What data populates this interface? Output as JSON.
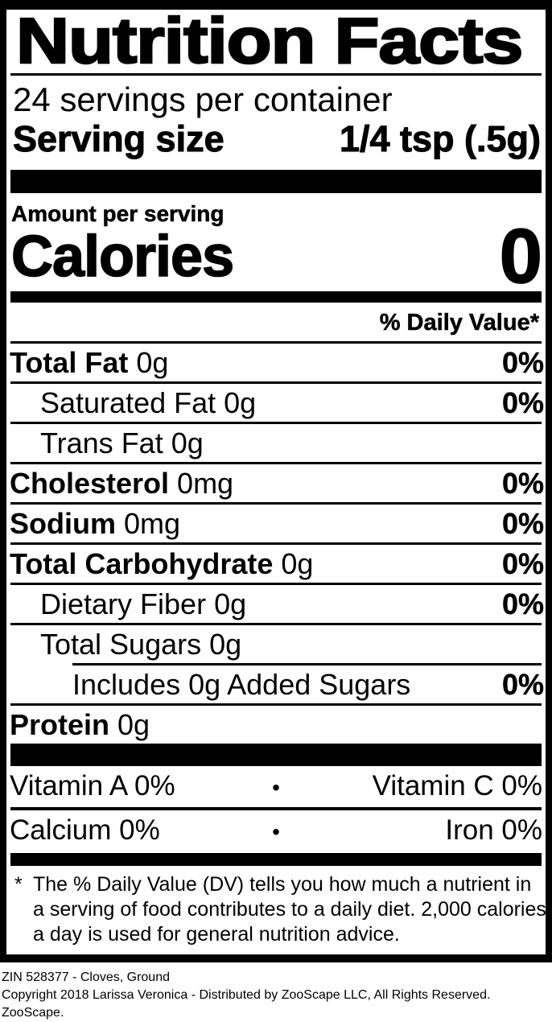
{
  "label": {
    "title": "Nutrition Facts",
    "servings_per_container": "24 servings per container",
    "serving_size_label": "Serving size",
    "serving_size_value": "1/4 tsp (.5g)",
    "amount_per_serving": "Amount per serving",
    "calories_label": "Calories",
    "calories_value": "0",
    "daily_value_header": "% Daily Value*",
    "rows": [
      {
        "name": "Total Fat",
        "amount": "0g",
        "dv": "0%",
        "bold": true,
        "indent": 0,
        "rule": "full"
      },
      {
        "name": "Saturated Fat",
        "amount": "0g",
        "dv": "0%",
        "bold": false,
        "indent": 1,
        "rule": "full"
      },
      {
        "name": "Trans Fat",
        "amount": "0g",
        "dv": "",
        "bold": false,
        "indent": 1,
        "rule": "full"
      },
      {
        "name": "Cholesterol",
        "amount": "0mg",
        "dv": "0%",
        "bold": true,
        "indent": 0,
        "rule": "full"
      },
      {
        "name": "Sodium",
        "amount": "0mg",
        "dv": "0%",
        "bold": true,
        "indent": 0,
        "rule": "full"
      },
      {
        "name": "Total Carbohydrate",
        "amount": "0g",
        "dv": "0%",
        "bold": true,
        "indent": 0,
        "rule": "full"
      },
      {
        "name": "Dietary Fiber",
        "amount": "0g",
        "dv": "0%",
        "bold": false,
        "indent": 1,
        "rule": "full"
      },
      {
        "name": "Total Sugars",
        "amount": "0g",
        "dv": "",
        "bold": false,
        "indent": 1,
        "rule": "indent"
      },
      {
        "name": "Includes 0g Added Sugars",
        "amount": "",
        "dv": "0%",
        "bold": false,
        "indent": 2,
        "rule": "full"
      },
      {
        "name": "Protein",
        "amount": "0g",
        "dv": "",
        "bold": true,
        "indent": 0,
        "rule": "none"
      }
    ],
    "micronutrients": [
      {
        "left": "Vitamin A 0%",
        "separator": "•",
        "right": "Vitamin C 0%",
        "rule": "full"
      },
      {
        "left": "Calcium 0%",
        "separator": "•",
        "right": "Iron 0%",
        "rule": "none"
      }
    ],
    "footnote_marker": "*",
    "footnote_lines": [
      "The % Daily Value (DV) tells you how much a nutrient in",
      "a serving of food contributes to a daily diet. 2,000 calories",
      "a day is used for general nutrition advice."
    ],
    "footnote_full": "The % Daily Value (DV) tells you how much a nutrient in a serving of food contributes to a daily diet. 2,000 calories a day is used for general nutrition advice."
  },
  "footer": {
    "line1": "ZIN 528377 - Cloves, Ground",
    "line2": "Copyright 2018 Larissa Veronica - Distributed by ZooScape LLC, All Rights Reserved. ZooScape."
  },
  "colors": {
    "ink": "#000000",
    "background": "#ffffff"
  }
}
